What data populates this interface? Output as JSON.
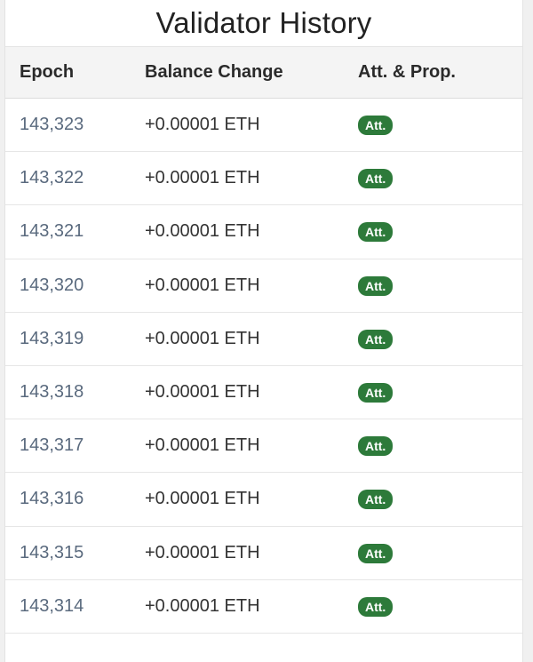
{
  "title": "Validator History",
  "columns": {
    "epoch": "Epoch",
    "balance": "Balance Change",
    "att": "Att. & Prop."
  },
  "rows": [
    {
      "epoch": "143,323",
      "balance": "+0.00001 ETH",
      "badge": "Att."
    },
    {
      "epoch": "143,322",
      "balance": "+0.00001 ETH",
      "badge": "Att."
    },
    {
      "epoch": "143,321",
      "balance": "+0.00001 ETH",
      "badge": "Att."
    },
    {
      "epoch": "143,320",
      "balance": "+0.00001 ETH",
      "badge": "Att."
    },
    {
      "epoch": "143,319",
      "balance": "+0.00001 ETH",
      "badge": "Att."
    },
    {
      "epoch": "143,318",
      "balance": "+0.00001 ETH",
      "badge": "Att."
    },
    {
      "epoch": "143,317",
      "balance": "+0.00001 ETH",
      "badge": "Att."
    },
    {
      "epoch": "143,316",
      "balance": "+0.00001 ETH",
      "badge": "Att."
    },
    {
      "epoch": "143,315",
      "balance": "+0.00001 ETH",
      "badge": "Att."
    },
    {
      "epoch": "143,314",
      "balance": "+0.00001 ETH",
      "badge": "Att."
    }
  ],
  "colors": {
    "badge_bg": "#2d7a3a",
    "epoch_text": "#5a6a7e",
    "header_bg": "#f4f4f4"
  }
}
